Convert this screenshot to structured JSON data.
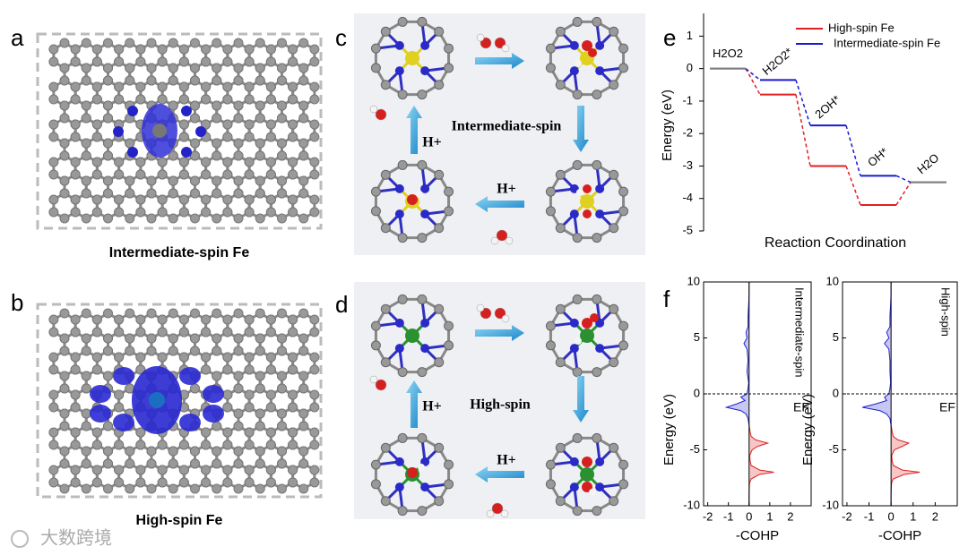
{
  "panels": {
    "a": {
      "letter": "a",
      "caption": "Intermediate-spin Fe"
    },
    "b": {
      "letter": "b",
      "caption": "High-spin Fe"
    },
    "c": {
      "letter": "c",
      "center": "Intermediate-spin",
      "proton_1": "H+",
      "proton_2": "H+"
    },
    "d": {
      "letter": "d",
      "center": "High-spin",
      "proton_1": "H+",
      "proton_2": "H+"
    },
    "e": {
      "letter": "e"
    },
    "f": {
      "letter": "f"
    }
  },
  "watermark": "大数跨境",
  "chart_data": [
    {
      "type": "energy-levels",
      "ylabel": "Energy (eV)",
      "xlabel": "Reaction Coordination",
      "categories": [
        "H2O2",
        "H2O2*",
        "2OH*",
        "OH*",
        "H2O"
      ],
      "series": [
        {
          "name": "High-spin Fe",
          "color": "#e02020",
          "values": [
            0,
            -0.8,
            -3.0,
            -4.2,
            -3.5
          ]
        },
        {
          "name": "Intermediate-spin Fe",
          "color": "#1a1ad0",
          "values": [
            0,
            -0.35,
            -1.75,
            -3.3,
            -3.5
          ]
        }
      ],
      "common_color": "#7f7f7f",
      "ylim": [
        -5,
        1.7
      ],
      "yticks": [
        -5,
        -4,
        -3,
        -2,
        -1,
        0,
        1
      ],
      "legend": "upper right"
    },
    {
      "type": "cohp",
      "ylabel": "Energy (eV)",
      "xlabel": "-COHP",
      "label": "Intermediate-spin",
      "ef_label": "EF",
      "fermi": 0,
      "energy": [
        -10,
        -9,
        -8,
        -7.6,
        -7.2,
        -7,
        -6.8,
        -6.4,
        -6,
        -5.5,
        -5,
        -4.7,
        -4.4,
        -4.1,
        -3.8,
        -3.4,
        -3,
        -2.6,
        -2.2,
        -1.8,
        -1.5,
        -1.2,
        -0.9,
        -0.6,
        -0.3,
        0,
        0.5,
        1,
        2,
        3,
        4,
        4.5,
        5,
        5.5,
        6,
        7,
        8,
        9,
        10
      ],
      "cohp": [
        0,
        0,
        0.02,
        0.1,
        0.5,
        1.2,
        0.5,
        0.1,
        0.05,
        0.03,
        0.15,
        0.4,
        0.9,
        0.3,
        0.1,
        0.05,
        0.02,
        -0.02,
        -0.05,
        -0.15,
        -0.4,
        -1.1,
        -0.6,
        -0.2,
        -0.4,
        -0.1,
        -0.05,
        -0.02,
        -0.1,
        -0.05,
        -0.1,
        -0.25,
        -0.1,
        -0.15,
        -0.05,
        -0.05,
        -0.02,
        0,
        0
      ],
      "positive_color": "#e02020",
      "negative_color": "#2020d0",
      "xlim": [
        -2.2,
        3
      ],
      "xticks": [
        -2,
        -1,
        0,
        1,
        2
      ],
      "ylim": [
        -10,
        10
      ],
      "yticks": [
        -10,
        -5,
        0,
        5,
        10
      ]
    },
    {
      "type": "cohp",
      "ylabel": "Energy (eV)",
      "xlabel": "-COHP",
      "label": "High-spin",
      "ef_label": "EF",
      "fermi": 0,
      "energy": [
        -10,
        -9,
        -8,
        -7.6,
        -7.2,
        -7,
        -6.8,
        -6.4,
        -6,
        -5.5,
        -5,
        -4.7,
        -4.4,
        -4.1,
        -3.8,
        -3.4,
        -3,
        -2.6,
        -2.2,
        -1.8,
        -1.5,
        -1.2,
        -0.9,
        -0.6,
        -0.3,
        0,
        0.5,
        1,
        2,
        3,
        4,
        4.5,
        5,
        5.5,
        6,
        7,
        8,
        9,
        10
      ],
      "cohp": [
        0,
        0,
        0.02,
        0.1,
        0.6,
        1.3,
        0.5,
        0.1,
        0.05,
        0.03,
        0.15,
        0.5,
        0.8,
        0.3,
        0.1,
        0.05,
        0.02,
        -0.02,
        -0.05,
        -0.2,
        -0.5,
        -1.3,
        -0.7,
        -0.2,
        -0.3,
        -0.1,
        -0.05,
        -0.02,
        -0.05,
        -0.05,
        -0.1,
        -0.3,
        -0.1,
        -0.2,
        -0.05,
        -0.05,
        -0.02,
        0,
        0
      ],
      "positive_color": "#e02020",
      "negative_color": "#2020d0",
      "xlim": [
        -2.2,
        3
      ],
      "xticks": [
        -2,
        -1,
        0,
        1,
        2
      ],
      "ylim": [
        -10,
        10
      ],
      "yticks": [
        -10,
        -5,
        0,
        5,
        10
      ]
    }
  ]
}
